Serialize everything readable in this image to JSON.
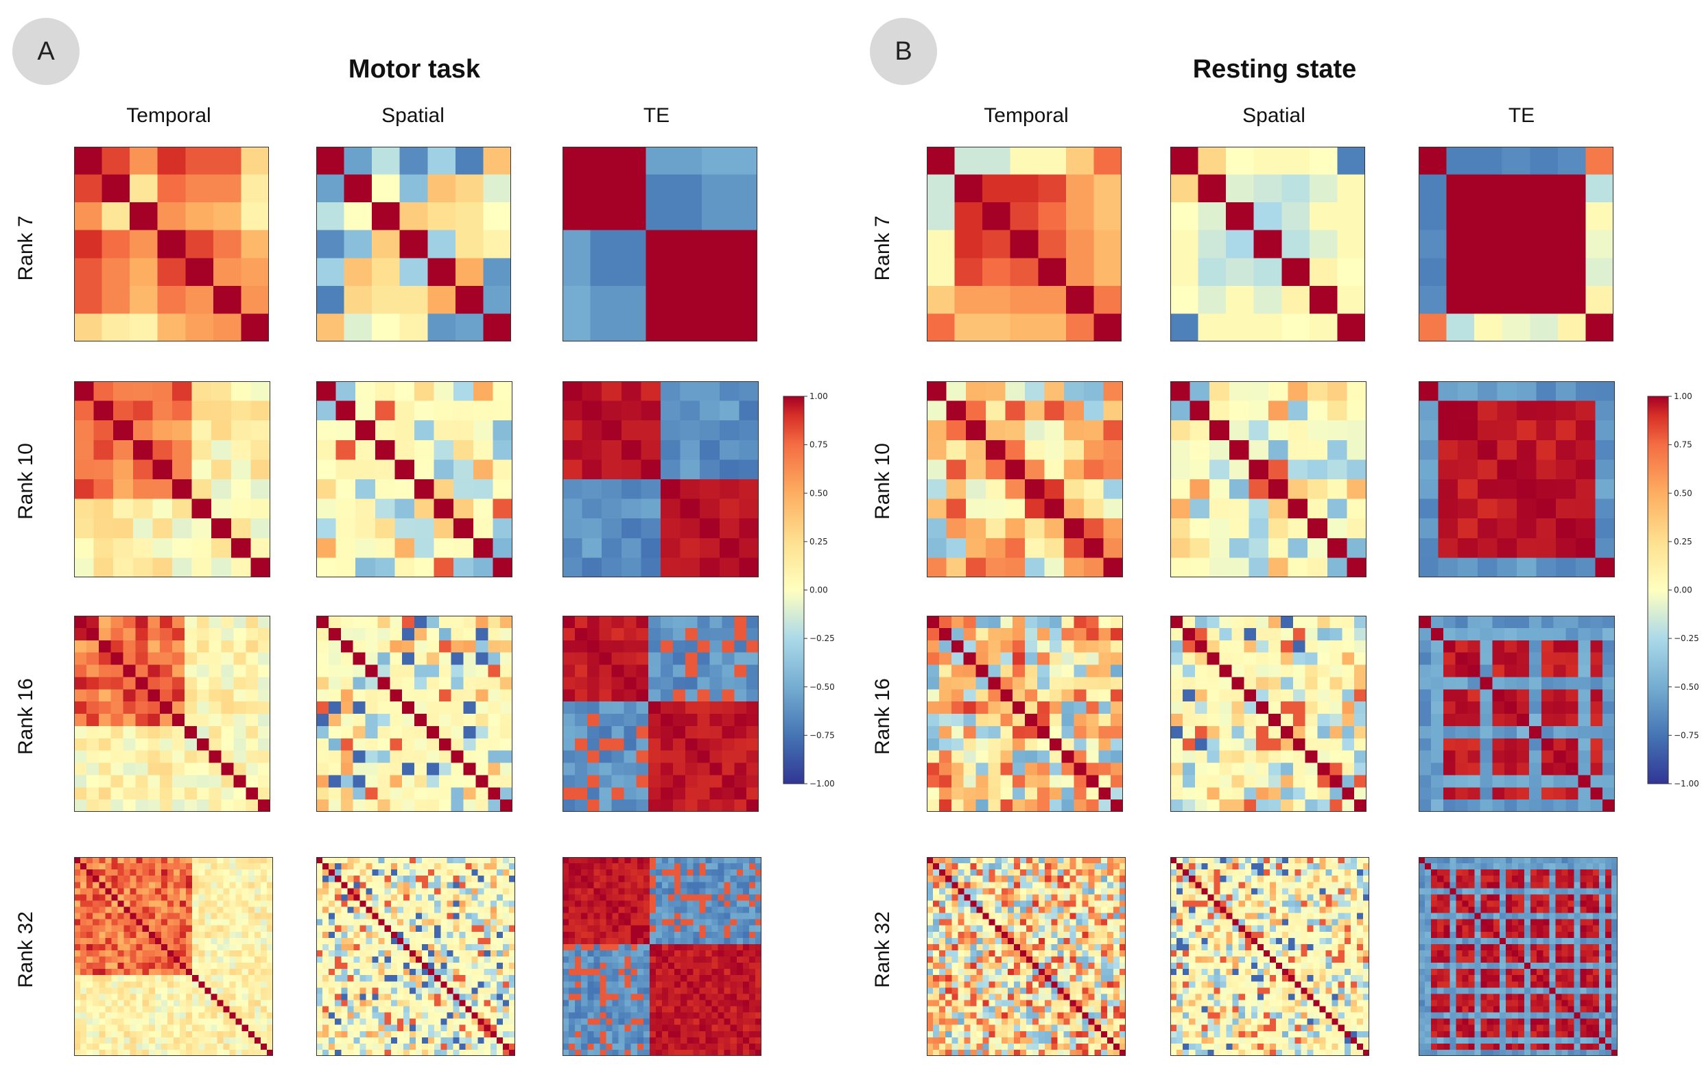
{
  "panels": [
    {
      "badge": "A",
      "title": "Motor task",
      "columns": [
        "Temporal",
        "Spatial",
        "TE"
      ],
      "rows": [
        "Rank 7",
        "Rank 10",
        "Rank 16",
        "Rank 32"
      ]
    },
    {
      "badge": "B",
      "title": "Resting state",
      "columns": [
        "Temporal",
        "Spatial",
        "TE"
      ],
      "rows": [
        "Rank 7",
        "Rank 10",
        "Rank 16",
        "Rank 32"
      ]
    }
  ],
  "chart_data": {
    "type": "heatmap",
    "description_values": "component-by-component correlation matrices",
    "ranks": [
      7,
      10,
      16,
      32
    ],
    "methods": [
      "Temporal",
      "Spatial",
      "TE"
    ],
    "colorbar": {
      "min": -1.0,
      "max": 1.0,
      "ticks": [
        "1.00",
        "0.75",
        "0.50",
        "0.25",
        "0.00",
        "−0.25",
        "−0.50",
        "−0.75",
        "−1.00"
      ],
      "colormap": "RdYlBu_r"
    },
    "matrices": {
      "motor": {
        "Temporal": {
          "7": [
            [
              1,
              0.85,
              0.6,
              0.9,
              0.8,
              0.8,
              0.3
            ],
            [
              0.85,
              1,
              0.2,
              0.75,
              0.65,
              0.65,
              0.15
            ],
            [
              0.6,
              0.2,
              1,
              0.6,
              0.5,
              0.45,
              0.1
            ],
            [
              0.9,
              0.75,
              0.6,
              1,
              0.85,
              0.7,
              0.45
            ],
            [
              0.8,
              0.65,
              0.5,
              0.85,
              1,
              0.6,
              0.55
            ],
            [
              0.8,
              0.65,
              0.45,
              0.7,
              0.6,
              1,
              0.6
            ],
            [
              0.3,
              0.15,
              0.1,
              0.45,
              0.55,
              0.6,
              1
            ]
          ],
          "style": "block",
          "param": 5,
          "base": 0.85,
          "off": 0.1
        },
        "Spatial": {
          "7": [
            [
              1,
              -0.55,
              -0.2,
              -0.65,
              -0.3,
              -0.7,
              0.4
            ],
            [
              -0.55,
              1,
              0.0,
              -0.4,
              0.4,
              0.3,
              -0.1
            ],
            [
              -0.2,
              0.0,
              1,
              0.35,
              0.25,
              0.2,
              0.0
            ],
            [
              -0.65,
              -0.4,
              0.35,
              1,
              -0.3,
              0.2,
              0.1
            ],
            [
              -0.3,
              0.4,
              0.25,
              -0.3,
              1,
              0.5,
              -0.6
            ],
            [
              -0.7,
              0.3,
              0.2,
              0.2,
              0.5,
              1,
              -0.55
            ],
            [
              0.4,
              -0.1,
              0.0,
              0.1,
              -0.6,
              -0.55,
              1
            ]
          ],
          "style": "sparse",
          "param": 0.5,
          "base": 0.0,
          "off": 0.0
        },
        "TE": {
          "7": [
            [
              1,
              1,
              1,
              -0.55,
              -0.55,
              -0.5,
              -0.5
            ],
            [
              1,
              1,
              1,
              -0.7,
              -0.7,
              -0.6,
              -0.6
            ],
            [
              1,
              1,
              1,
              -0.7,
              -0.7,
              -0.6,
              -0.6
            ],
            [
              -0.55,
              -0.7,
              -0.7,
              1,
              1,
              1,
              1
            ],
            [
              -0.55,
              -0.7,
              -0.7,
              1,
              1,
              1,
              1
            ],
            [
              -0.5,
              -0.6,
              -0.6,
              1,
              1,
              1,
              1
            ],
            [
              -0.5,
              -0.6,
              -0.6,
              1,
              1,
              1,
              1
            ]
          ],
          "style": "twoblock",
          "param": 0.45,
          "base": 1.0,
          "off": -0.65
        }
      },
      "rest": {
        "Temporal": {
          "7": [
            [
              1,
              -0.15,
              -0.15,
              0.05,
              0.05,
              0.35,
              0.75
            ],
            [
              -0.15,
              1,
              0.9,
              0.9,
              0.85,
              0.55,
              0.4
            ],
            [
              -0.15,
              0.9,
              1,
              0.85,
              0.75,
              0.55,
              0.4
            ],
            [
              0.05,
              0.9,
              0.85,
              1,
              0.8,
              0.6,
              0.45
            ],
            [
              0.05,
              0.85,
              0.75,
              0.8,
              1,
              0.6,
              0.45
            ],
            [
              0.35,
              0.55,
              0.55,
              0.6,
              0.6,
              1,
              0.7
            ],
            [
              0.75,
              0.4,
              0.4,
              0.45,
              0.45,
              0.7,
              1
            ]
          ],
          "style": "mixed",
          "param": 0.5,
          "base": 0.5,
          "off": 0.1
        },
        "Spatial": {
          "7": [
            [
              1,
              0.3,
              0.0,
              0.05,
              0.05,
              0.0,
              -0.7
            ],
            [
              0.3,
              1,
              -0.1,
              -0.15,
              -0.2,
              -0.1,
              0.05
            ],
            [
              0.0,
              -0.1,
              1,
              -0.25,
              -0.15,
              0.05,
              0.05
            ],
            [
              0.05,
              -0.15,
              -0.25,
              1,
              -0.2,
              -0.1,
              0.05
            ],
            [
              0.05,
              -0.2,
              -0.15,
              -0.2,
              1,
              0.1,
              0.0
            ],
            [
              0.0,
              -0.1,
              0.05,
              -0.1,
              0.1,
              1,
              0.05
            ],
            [
              -0.7,
              0.05,
              0.05,
              0.05,
              0.0,
              0.05,
              1
            ]
          ],
          "style": "sparse",
          "param": 0.35,
          "base": 0.0,
          "off": 0.0
        },
        "TE": {
          "7": [
            [
              1,
              -0.7,
              -0.7,
              -0.65,
              -0.7,
              -0.65,
              0.7
            ],
            [
              -0.7,
              1,
              1,
              1,
              1,
              1,
              -0.2
            ],
            [
              -0.7,
              1,
              1,
              1,
              1,
              1,
              0.05
            ],
            [
              -0.65,
              1,
              1,
              1,
              1,
              1,
              -0.05
            ],
            [
              -0.7,
              1,
              1,
              1,
              1,
              1,
              -0.1
            ],
            [
              -0.65,
              1,
              1,
              1,
              1,
              1,
              0.1
            ],
            [
              0.7,
              -0.2,
              0.05,
              -0.05,
              -0.1,
              0.1,
              1
            ]
          ],
          "style": "frame",
          "param": 0.0,
          "base": 1.0,
          "off": -0.7
        }
      }
    }
  }
}
